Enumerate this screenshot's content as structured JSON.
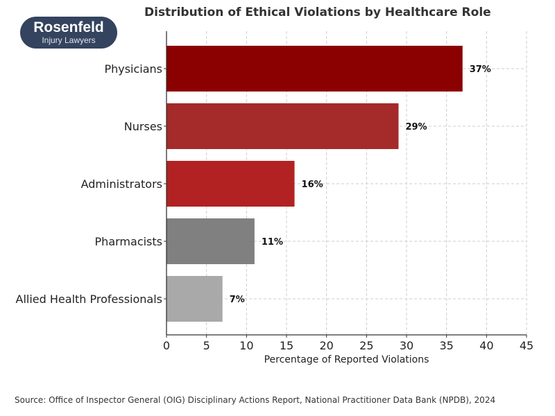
{
  "logo": {
    "line1": "Rosenfeld",
    "line2": "Injury Lawyers"
  },
  "source": "Source: Office of Inspector General (OIG) Disciplinary Actions Report, National Practitioner Data Bank (NPDB), 2024",
  "chart_data": {
    "type": "bar",
    "orientation": "horizontal",
    "title": "Distribution of Ethical Violations by Healthcare Role",
    "xlabel": "Percentage of Reported Violations",
    "ylabel": "",
    "categories": [
      "Physicians",
      "Nurses",
      "Administrators",
      "Pharmacists",
      "Allied Health Professionals"
    ],
    "values": [
      37,
      29,
      16,
      11,
      7
    ],
    "labels": [
      "37%",
      "29%",
      "16%",
      "11%",
      "7%"
    ],
    "colors": [
      "#8b0000",
      "#a52a2a",
      "#b22222",
      "#808080",
      "#a9a9a9"
    ],
    "xlim": [
      0,
      45
    ],
    "xticks": [
      0,
      5,
      10,
      15,
      20,
      25,
      30,
      35,
      40,
      45
    ],
    "grid": true
  }
}
